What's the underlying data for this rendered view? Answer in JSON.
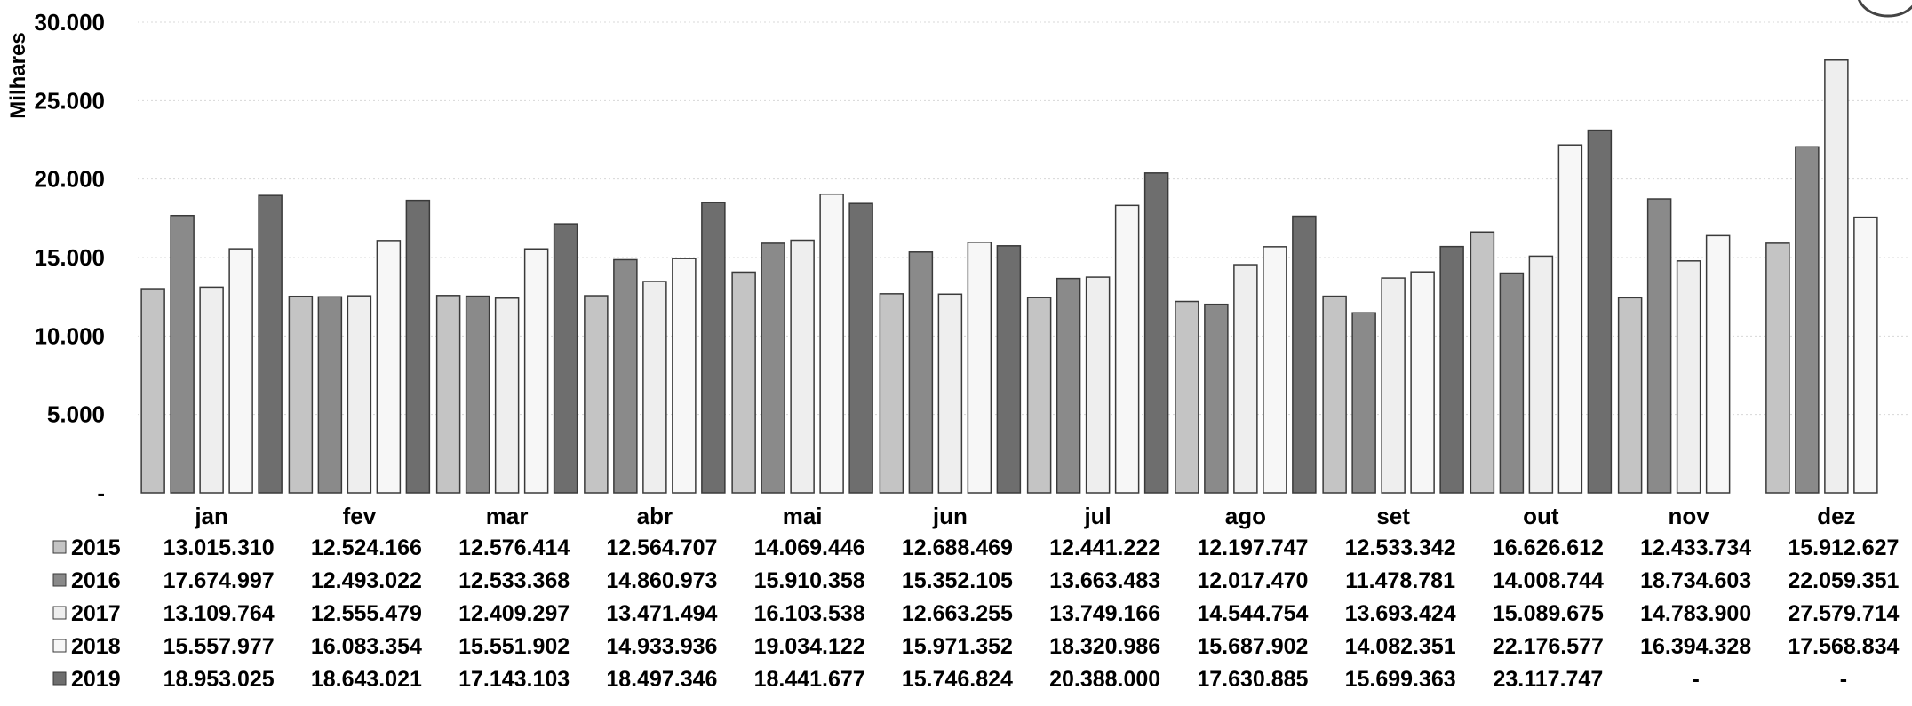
{
  "colors": {
    "2015": "#c4c4c4",
    "2016": "#8a8a8a",
    "2017": "#eeeeee",
    "2018": "#f7f7f7",
    "2019": "#6e6e6e",
    "bar_stroke": "#3a3a3a",
    "grid": "#d8d8d8"
  },
  "chart_data": {
    "type": "bar",
    "ylabel": "Milhares",
    "ylim": [
      0,
      30000
    ],
    "yticks": [
      "-",
      "5.000",
      "10.000",
      "15.000",
      "20.000",
      "25.000",
      "30.000"
    ],
    "categories": [
      "jan",
      "fev",
      "mar",
      "abr",
      "mai",
      "jun",
      "jul",
      "ago",
      "set",
      "out",
      "nov",
      "dez"
    ],
    "series": [
      {
        "name": "2015",
        "values": [
          13015.31,
          12524.166,
          12576.414,
          12564.707,
          14069.446,
          12688.469,
          12441.222,
          12197.747,
          12533.342,
          16626.612,
          12433.734,
          15912.627
        ],
        "labels": [
          "13.015.310",
          "12.524.166",
          "12.576.414",
          "12.564.707",
          "14.069.446",
          "12.688.469",
          "12.441.222",
          "12.197.747",
          "12.533.342",
          "16.626.612",
          "12.433.734",
          "15.912.627"
        ]
      },
      {
        "name": "2016",
        "values": [
          17674.997,
          12493.022,
          12533.368,
          14860.973,
          15910.358,
          15352.105,
          13663.483,
          12017.47,
          11478.781,
          14008.744,
          18734.603,
          22059.351
        ],
        "labels": [
          "17.674.997",
          "12.493.022",
          "12.533.368",
          "14.860.973",
          "15.910.358",
          "15.352.105",
          "13.663.483",
          "12.017.470",
          "11.478.781",
          "14.008.744",
          "18.734.603",
          "22.059.351"
        ]
      },
      {
        "name": "2017",
        "values": [
          13109.764,
          12555.479,
          12409.297,
          13471.494,
          16103.538,
          12663.255,
          13749.166,
          14544.754,
          13693.424,
          15089.675,
          14783.9,
          27579.714
        ],
        "labels": [
          "13.109.764",
          "12.555.479",
          "12.409.297",
          "13.471.494",
          "16.103.538",
          "12.663.255",
          "13.749.166",
          "14.544.754",
          "13.693.424",
          "15.089.675",
          "14.783.900",
          "27.579.714"
        ]
      },
      {
        "name": "2018",
        "values": [
          15557.977,
          16083.354,
          15551.902,
          14933.936,
          19034.122,
          15971.352,
          18320.986,
          15687.902,
          14082.351,
          22176.577,
          16394.328,
          17568.834
        ],
        "labels": [
          "15.557.977",
          "16.083.354",
          "15.551.902",
          "14.933.936",
          "19.034.122",
          "15.971.352",
          "18.320.986",
          "15.687.902",
          "14.082.351",
          "22.176.577",
          "16.394.328",
          "17.568.834"
        ]
      },
      {
        "name": "2019",
        "values": [
          18953.025,
          18643.021,
          17143.103,
          18497.346,
          18441.677,
          15746.824,
          20388.0,
          17630.885,
          15699.363,
          23117.747,
          null,
          null
        ],
        "labels": [
          "18.953.025",
          "18.643.021",
          "17.143.103",
          "18.497.346",
          "18.441.677",
          "15.746.824",
          "20.388.000",
          "17.630.885",
          "15.699.363",
          "23.117.747",
          "-",
          "-"
        ]
      }
    ]
  }
}
